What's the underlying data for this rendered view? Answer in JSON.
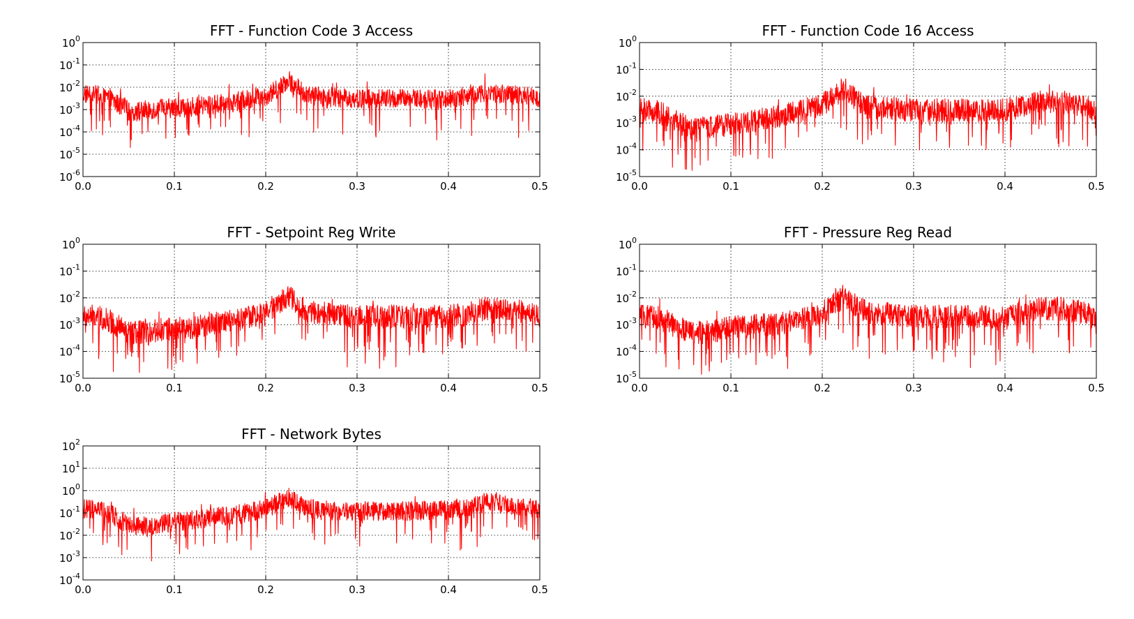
{
  "chart_data": [
    {
      "type": "line",
      "title": "FFT - Function Code 3 Access",
      "xlabel": "",
      "ylabel": "",
      "xlim": [
        0.0,
        0.5
      ],
      "ylim": [
        1e-06,
        1
      ],
      "yscale": "log",
      "grid": true,
      "legend": "none",
      "xticks": [
        0.0,
        0.1,
        0.2,
        0.3,
        0.4,
        0.5
      ],
      "xticklabels": [
        "0.0",
        "0.1",
        "0.2",
        "0.3",
        "0.4",
        "0.5"
      ],
      "yticks": [
        -6,
        -5,
        -4,
        -3,
        -2,
        -1,
        0
      ],
      "color": "#ff0000",
      "series": [
        {
          "x": [
            0.0,
            0.01,
            0.02,
            0.03,
            0.04,
            0.05,
            0.06,
            0.07,
            0.08,
            0.09,
            0.1,
            0.12,
            0.14,
            0.16,
            0.18,
            0.2,
            0.21,
            0.22,
            0.225,
            0.23,
            0.24,
            0.25,
            0.27,
            0.3,
            0.33,
            0.36,
            0.39,
            0.42,
            0.44,
            0.46,
            0.48,
            0.49,
            0.5
          ],
          "y": [
            0.005,
            0.005,
            0.004,
            0.003,
            0.0015,
            0.0009,
            0.0008,
            0.001,
            0.001,
            0.0011,
            0.0012,
            0.0013,
            0.0016,
            0.002,
            0.0028,
            0.004,
            0.007,
            0.015,
            0.022,
            0.013,
            0.006,
            0.004,
            0.0035,
            0.003,
            0.003,
            0.003,
            0.003,
            0.004,
            0.006,
            0.005,
            0.004,
            0.004,
            0.003
          ]
        }
      ]
    },
    {
      "type": "line",
      "title": "FFT - Function Code 16 Access",
      "xlabel": "",
      "ylabel": "",
      "xlim": [
        0.0,
        0.5
      ],
      "ylim": [
        1e-05,
        1
      ],
      "yscale": "log",
      "grid": true,
      "legend": "none",
      "xticks": [
        0.0,
        0.1,
        0.2,
        0.3,
        0.4,
        0.5
      ],
      "xticklabels": [
        "0.0",
        "0.1",
        "0.2",
        "0.3",
        "0.4",
        "0.5"
      ],
      "yticks": [
        -5,
        -4,
        -3,
        -2,
        -1,
        0
      ],
      "color": "#ff0000",
      "series": [
        {
          "x": [
            0.0,
            0.01,
            0.02,
            0.03,
            0.04,
            0.05,
            0.06,
            0.07,
            0.08,
            0.09,
            0.1,
            0.12,
            0.14,
            0.16,
            0.18,
            0.2,
            0.21,
            0.22,
            0.225,
            0.23,
            0.24,
            0.25,
            0.27,
            0.3,
            0.33,
            0.36,
            0.39,
            0.42,
            0.44,
            0.46,
            0.48,
            0.49,
            0.5
          ],
          "y": [
            0.003,
            0.003,
            0.0025,
            0.002,
            0.0012,
            0.0008,
            0.0006,
            0.0006,
            0.0007,
            0.0008,
            0.0009,
            0.0011,
            0.0015,
            0.002,
            0.003,
            0.005,
            0.008,
            0.015,
            0.022,
            0.012,
            0.006,
            0.004,
            0.0035,
            0.003,
            0.003,
            0.003,
            0.003,
            0.004,
            0.007,
            0.006,
            0.004,
            0.004,
            0.003
          ]
        }
      ]
    },
    {
      "type": "line",
      "title": "FFT - Setpoint Reg Write",
      "xlabel": "",
      "ylabel": "",
      "xlim": [
        0.0,
        0.5
      ],
      "ylim": [
        1e-05,
        1
      ],
      "yscale": "log",
      "grid": true,
      "legend": "none",
      "xticks": [
        0.0,
        0.1,
        0.2,
        0.3,
        0.4,
        0.5
      ],
      "xticklabels": [
        "0.0",
        "0.1",
        "0.2",
        "0.3",
        "0.4",
        "0.5"
      ],
      "yticks": [
        -5,
        -4,
        -3,
        -2,
        -1,
        0
      ],
      "color": "#ff0000",
      "series": [
        {
          "x": [
            0.0,
            0.01,
            0.02,
            0.03,
            0.04,
            0.05,
            0.06,
            0.07,
            0.08,
            0.09,
            0.1,
            0.12,
            0.14,
            0.16,
            0.18,
            0.2,
            0.21,
            0.22,
            0.225,
            0.23,
            0.24,
            0.25,
            0.27,
            0.3,
            0.33,
            0.36,
            0.39,
            0.42,
            0.44,
            0.46,
            0.48,
            0.49,
            0.5
          ],
          "y": [
            0.002,
            0.002,
            0.0018,
            0.0013,
            0.0008,
            0.0005,
            0.0005,
            0.0006,
            0.0006,
            0.0007,
            0.0007,
            0.0008,
            0.001,
            0.0013,
            0.0018,
            0.003,
            0.005,
            0.009,
            0.013,
            0.008,
            0.004,
            0.003,
            0.0025,
            0.002,
            0.002,
            0.002,
            0.002,
            0.0025,
            0.004,
            0.004,
            0.003,
            0.003,
            0.002
          ]
        }
      ]
    },
    {
      "type": "line",
      "title": "FFT - Pressure Reg Read",
      "xlabel": "",
      "ylabel": "",
      "xlim": [
        0.0,
        0.5
      ],
      "ylim": [
        1e-05,
        1
      ],
      "yscale": "log",
      "grid": true,
      "legend": "none",
      "xticks": [
        0.0,
        0.1,
        0.2,
        0.3,
        0.4,
        0.5
      ],
      "xticklabels": [
        "0.0",
        "0.1",
        "0.2",
        "0.3",
        "0.4",
        "0.5"
      ],
      "yticks": [
        -5,
        -4,
        -3,
        -2,
        -1,
        0
      ],
      "color": "#ff0000",
      "series": [
        {
          "x": [
            0.0,
            0.01,
            0.02,
            0.03,
            0.04,
            0.05,
            0.06,
            0.07,
            0.08,
            0.09,
            0.1,
            0.12,
            0.14,
            0.16,
            0.18,
            0.2,
            0.21,
            0.22,
            0.225,
            0.23,
            0.24,
            0.25,
            0.27,
            0.3,
            0.33,
            0.36,
            0.39,
            0.42,
            0.44,
            0.46,
            0.48,
            0.49,
            0.5
          ],
          "y": [
            0.002,
            0.002,
            0.0018,
            0.0013,
            0.0008,
            0.0006,
            0.0005,
            0.0005,
            0.0006,
            0.0007,
            0.0008,
            0.0009,
            0.001,
            0.0012,
            0.0016,
            0.0028,
            0.005,
            0.009,
            0.013,
            0.008,
            0.004,
            0.003,
            0.0025,
            0.002,
            0.002,
            0.002,
            0.002,
            0.0025,
            0.004,
            0.004,
            0.003,
            0.003,
            0.002
          ]
        }
      ]
    },
    {
      "type": "line",
      "title": "FFT - Network Bytes",
      "xlabel": "",
      "ylabel": "",
      "xlim": [
        0.0,
        0.5
      ],
      "ylim": [
        0.0001,
        100
      ],
      "yscale": "log",
      "grid": true,
      "legend": "none",
      "xticks": [
        0.0,
        0.1,
        0.2,
        0.3,
        0.4,
        0.5
      ],
      "xticklabels": [
        "0.0",
        "0.1",
        "0.2",
        "0.3",
        "0.4",
        "0.5"
      ],
      "yticks": [
        -4,
        -3,
        -2,
        -1,
        0,
        1,
        2
      ],
      "color": "#ff0000",
      "series": [
        {
          "x": [
            0.0,
            0.01,
            0.02,
            0.03,
            0.04,
            0.05,
            0.06,
            0.07,
            0.08,
            0.09,
            0.1,
            0.12,
            0.14,
            0.16,
            0.18,
            0.2,
            0.21,
            0.22,
            0.225,
            0.23,
            0.24,
            0.25,
            0.27,
            0.3,
            0.33,
            0.36,
            0.39,
            0.42,
            0.44,
            0.46,
            0.48,
            0.49,
            0.5
          ],
          "y": [
            0.15,
            0.15,
            0.12,
            0.09,
            0.05,
            0.03,
            0.025,
            0.03,
            0.03,
            0.035,
            0.04,
            0.05,
            0.06,
            0.08,
            0.1,
            0.15,
            0.25,
            0.4,
            0.5,
            0.35,
            0.2,
            0.15,
            0.13,
            0.12,
            0.12,
            0.12,
            0.13,
            0.18,
            0.3,
            0.25,
            0.18,
            0.17,
            0.15
          ]
        }
      ]
    }
  ]
}
